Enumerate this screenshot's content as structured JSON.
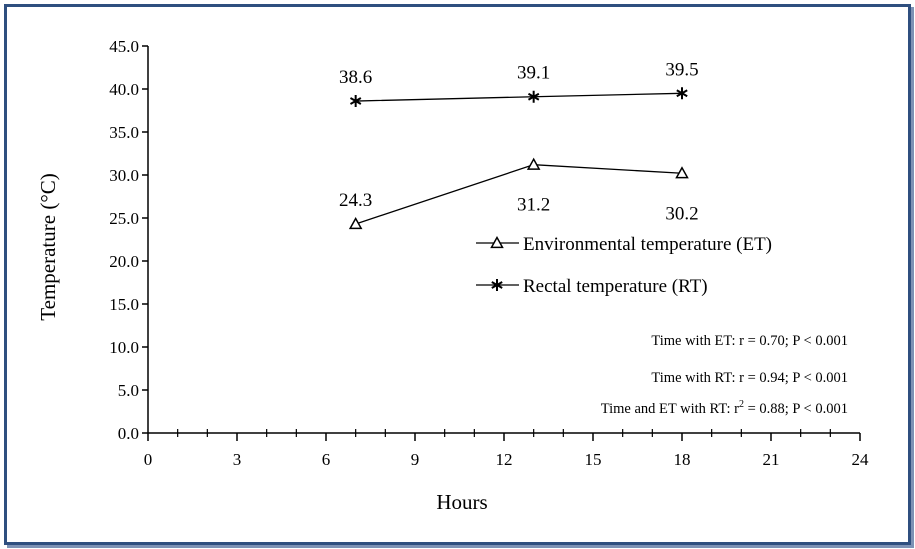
{
  "chart_data": {
    "type": "line",
    "xlabel": "Hours",
    "ylabel": "Temperature (°C)",
    "xlim": [
      0,
      24
    ],
    "ylim": [
      0,
      45
    ],
    "xticks": [
      "0",
      "3",
      "6",
      "9",
      "12",
      "15",
      "18",
      "21",
      "24"
    ],
    "yticks": [
      "0.0",
      "5.0",
      "10.0",
      "15.0",
      "20.0",
      "25.0",
      "30.0",
      "35.0",
      "40.0",
      "45.0"
    ],
    "x_minor_step": 1,
    "grid": false,
    "legend_position": "right",
    "series": [
      {
        "name": "Environmental temperature (ET)",
        "marker": "triangle",
        "x": [
          7,
          13,
          18
        ],
        "y": [
          24.3,
          31.2,
          30.2
        ],
        "labels": [
          "24.3",
          "31.2",
          "30.2"
        ],
        "label_position": [
          "above",
          "below",
          "below"
        ]
      },
      {
        "name": "Rectal temperature (RT)",
        "marker": "asterisk",
        "x": [
          7,
          13,
          18
        ],
        "y": [
          38.6,
          39.1,
          39.5
        ],
        "labels": [
          "38.6",
          "39.1",
          "39.5"
        ],
        "label_position": [
          "above",
          "above",
          "above"
        ]
      }
    ],
    "annotations": [
      "Time with ET: r = 0.70; P < 0.001",
      "Time with RT: r = 0.94; P < 0.001",
      {
        "prefix": "Time and ET with RT: r",
        "sup": "2",
        "suffix": " = 0.88; P < 0.001"
      }
    ],
    "colors": {
      "line": "#000000",
      "frame": "#2f4f7f"
    }
  }
}
